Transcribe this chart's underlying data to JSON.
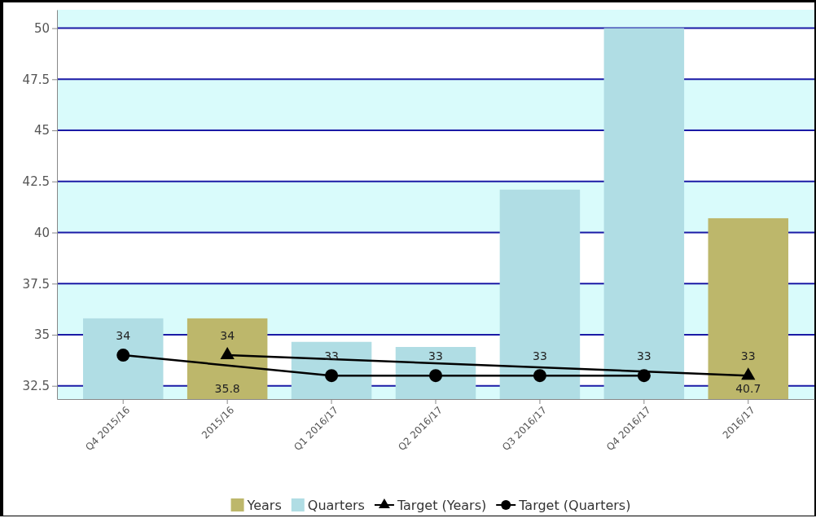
{
  "chart_data": {
    "type": "bar",
    "categories": [
      "Q4 2015/16",
      "2015/16",
      "Q1 2016/17",
      "Q2 2016/17",
      "Q3 2016/17",
      "Q4 2016/17",
      "2016/17"
    ],
    "series": [
      {
        "name": "Years",
        "color": "#bdb76b",
        "values": [
          null,
          35.8,
          null,
          null,
          null,
          null,
          40.7
        ],
        "value_labels": [
          null,
          "35.8",
          null,
          null,
          null,
          null,
          "40.7"
        ]
      },
      {
        "name": "Quarters",
        "color": "#b0dde4",
        "values": [
          35.8,
          null,
          34.65,
          34.4,
          42.1,
          50,
          null
        ]
      },
      {
        "name": "Target (Years)",
        "type": "line",
        "color": "#000000",
        "marker": "triangle",
        "values": [
          null,
          34,
          null,
          null,
          null,
          null,
          33
        ],
        "value_labels": [
          null,
          "34",
          null,
          null,
          null,
          null,
          "33"
        ]
      },
      {
        "name": "Target (Quarters)",
        "type": "line",
        "color": "#000000",
        "marker": "circle",
        "values": [
          34,
          null,
          33,
          33,
          33,
          33,
          null
        ],
        "value_labels": [
          "34",
          null,
          "33",
          "33",
          "33",
          "33",
          null
        ]
      }
    ],
    "ylim": [
      31.85,
      50.9
    ],
    "yticks": [
      32.5,
      35,
      37.5,
      40,
      42.5,
      45,
      47.5,
      50
    ],
    "grid": "y",
    "legend": "bottom"
  }
}
